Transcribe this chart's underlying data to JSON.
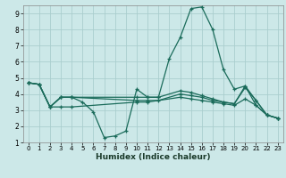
{
  "xlabel": "Humidex (Indice chaleur)",
  "bg_color": "#cce8e8",
  "grid_color": "#aacece",
  "line_color": "#1a6b5a",
  "xlim": [
    -0.5,
    23.5
  ],
  "ylim": [
    1,
    9.5
  ],
  "xticks": [
    0,
    1,
    2,
    3,
    4,
    5,
    6,
    7,
    8,
    9,
    10,
    11,
    12,
    13,
    14,
    15,
    16,
    17,
    18,
    19,
    20,
    21,
    22,
    23
  ],
  "yticks": [
    1,
    2,
    3,
    4,
    5,
    6,
    7,
    8,
    9
  ],
  "series": [
    {
      "x": [
        0,
        1,
        2,
        3,
        4,
        5,
        6,
        7,
        8,
        9,
        10,
        11,
        12,
        13,
        14,
        15,
        16,
        17,
        18,
        19,
        20,
        21,
        22,
        23
      ],
      "y": [
        4.7,
        4.6,
        3.2,
        3.8,
        3.8,
        3.5,
        2.9,
        1.3,
        1.4,
        1.7,
        4.3,
        3.8,
        3.8,
        6.2,
        7.5,
        9.3,
        9.4,
        8.0,
        5.5,
        4.3,
        4.5,
        3.3,
        2.7,
        2.5
      ]
    },
    {
      "x": [
        0,
        1,
        2,
        3,
        4,
        10,
        11,
        14,
        15,
        16,
        17,
        18,
        19,
        20,
        21,
        22,
        23
      ],
      "y": [
        4.7,
        4.6,
        3.2,
        3.2,
        3.2,
        3.5,
        3.5,
        3.8,
        3.7,
        3.6,
        3.5,
        3.4,
        3.3,
        3.7,
        3.3,
        2.7,
        2.5
      ]
    },
    {
      "x": [
        0,
        1,
        2,
        3,
        4,
        10,
        11,
        12,
        14,
        15,
        16,
        17,
        18,
        19,
        20,
        21,
        22,
        23
      ],
      "y": [
        4.7,
        4.6,
        3.2,
        3.8,
        3.8,
        3.6,
        3.6,
        3.6,
        4.0,
        3.9,
        3.8,
        3.6,
        3.5,
        3.4,
        4.4,
        3.6,
        2.7,
        2.5
      ]
    },
    {
      "x": [
        0,
        1,
        2,
        3,
        4,
        10,
        11,
        12,
        14,
        15,
        16,
        17,
        18,
        19,
        20,
        21,
        22,
        23
      ],
      "y": [
        4.7,
        4.6,
        3.2,
        3.8,
        3.8,
        3.8,
        3.8,
        3.8,
        4.2,
        4.1,
        3.9,
        3.7,
        3.5,
        3.4,
        4.5,
        3.6,
        2.7,
        2.5
      ]
    }
  ]
}
